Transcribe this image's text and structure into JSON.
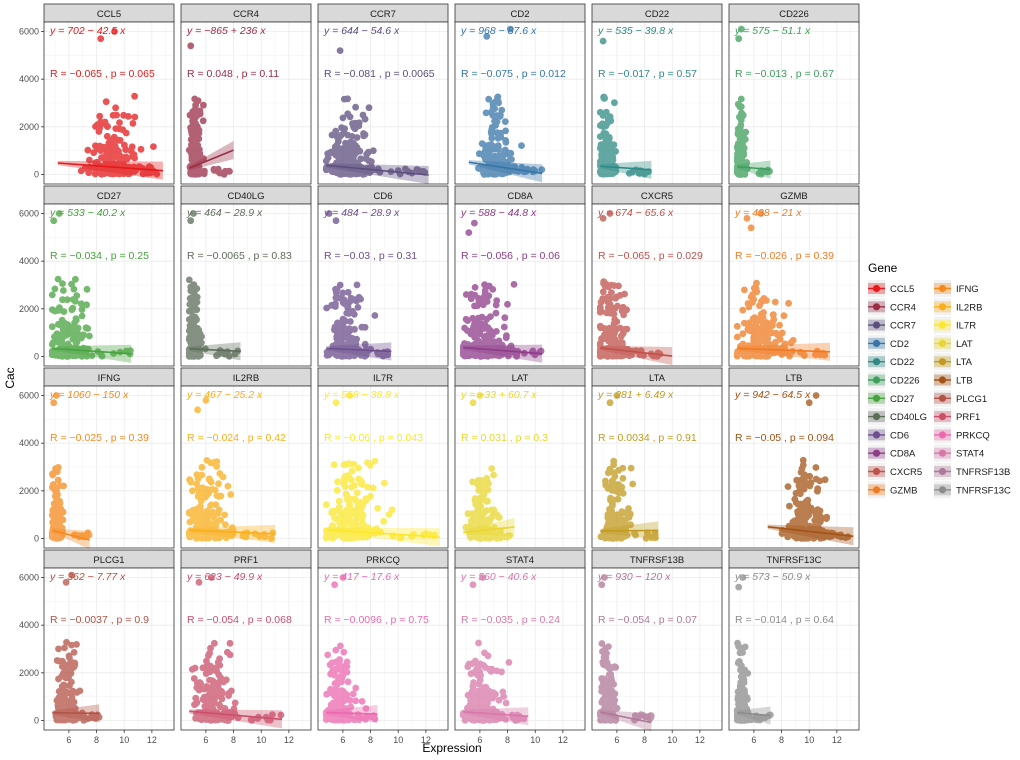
{
  "chart_data": {
    "type": "scatter",
    "xlabel": "Expression",
    "ylabel": "Cac",
    "xlim": [
      4.2,
      13.6
    ],
    "ylim": [
      -400,
      6400
    ],
    "x_ticks": [
      "6",
      "8",
      "10",
      "12"
    ],
    "y_ticks": [
      "0",
      "2000",
      "4000",
      "6000"
    ],
    "grid": true,
    "legend": {
      "title": "Gene",
      "placement": "right",
      "columns": 2
    },
    "panels": [
      {
        "gene": "CCL5",
        "color": "#E41A1C",
        "eq": "y = 702 − 42.5 x",
        "stat": "R = −0.065 , p = 0.065",
        "slope": -42.5,
        "intercept": 702,
        "x_range": [
          5.2,
          12.8
        ],
        "center": 8.5,
        "spread": 1.3,
        "outliers": [
          [
            8.3,
            5700
          ],
          [
            9.3,
            6000
          ]
        ]
      },
      {
        "gene": "CCR4",
        "color": "#9A2D46",
        "eq": "y = −865 + 236 x",
        "stat": "R = 0.048 , p = 0.11",
        "slope": 236,
        "intercept": -865,
        "x_range": [
          4.8,
          8.0
        ],
        "center": 5.1,
        "spread": 0.25,
        "outliers": [
          [
            4.9,
            5400
          ]
        ]
      },
      {
        "gene": "CCR7",
        "color": "#5D4E7E",
        "eq": "y = 644 − 54.6 x",
        "stat": "R = −0.081 , p = 0.0065",
        "slope": -54.6,
        "intercept": 644,
        "x_range": [
          4.8,
          12.2
        ],
        "center": 6.0,
        "spread": 1.0,
        "outliers": [
          [
            5.8,
            5200
          ]
        ]
      },
      {
        "gene": "CD2",
        "color": "#3775A8",
        "eq": "y = 968 − 87.6 x",
        "stat": "R = −0.075 , p = 0.012",
        "slope": -87.6,
        "intercept": 968,
        "x_range": [
          5.2,
          10.5
        ],
        "center": 6.8,
        "spread": 0.8,
        "outliers": [
          [
            6.5,
            5800
          ],
          [
            8.2,
            6100
          ]
        ]
      },
      {
        "gene": "CD22",
        "color": "#2F8A85",
        "eq": "y = 535 − 39.8 x",
        "stat": "R = −0.017 , p = 0.57",
        "slope": -39.8,
        "intercept": 535,
        "x_range": [
          4.8,
          8.5
        ],
        "center": 5.1,
        "spread": 0.35,
        "outliers": [
          [
            5.0,
            5600
          ]
        ]
      },
      {
        "gene": "CD226",
        "color": "#3E9E5C",
        "eq": "y = 575 − 51.1 x",
        "stat": "R = −0.013 , p = 0.67",
        "slope": -51.1,
        "intercept": 575,
        "x_range": [
          4.8,
          7.2
        ],
        "center": 4.95,
        "spread": 0.2,
        "outliers": [
          [
            4.9,
            5700
          ],
          [
            5.1,
            6100
          ]
        ]
      },
      {
        "gene": "CD27",
        "color": "#47A23F",
        "eq": "y = 533 − 40.2 x",
        "stat": "R = −0.034 , p = 0.25",
        "slope": -40.2,
        "intercept": 533,
        "x_range": [
          4.8,
          10.5
        ],
        "center": 5.5,
        "spread": 0.9,
        "outliers": [
          [
            4.9,
            5700
          ],
          [
            5.3,
            6000
          ]
        ]
      },
      {
        "gene": "CD40LG",
        "color": "#5D6D5A",
        "eq": "y = 464 − 28.9 x",
        "stat": "R = −0.0065 , p = 0.83",
        "slope": -28.9,
        "intercept": 464,
        "x_range": [
          4.8,
          8.5
        ],
        "center": 5.0,
        "spread": 0.3,
        "outliers": [
          [
            4.9,
            5700
          ],
          [
            5.1,
            6000
          ]
        ]
      },
      {
        "gene": "CD6",
        "color": "#6C4E8C",
        "eq": "y = 484 − 28.9 x",
        "stat": "R = −0.03 , p = 0.31",
        "slope": -28.9,
        "intercept": 484,
        "x_range": [
          4.8,
          9.5
        ],
        "center": 5.8,
        "spread": 0.9,
        "outliers": [
          [
            5.5,
            5700
          ],
          [
            5.0,
            6000
          ]
        ]
      },
      {
        "gene": "CD8A",
        "color": "#8E3C8A",
        "eq": "y = 588 − 44.8 x",
        "stat": "R = −0.056 , p = 0.06",
        "slope": -44.8,
        "intercept": 588,
        "x_range": [
          4.8,
          10.5
        ],
        "center": 5.6,
        "spread": 1.0,
        "outliers": [
          [
            5.2,
            5200
          ],
          [
            5.6,
            5600
          ]
        ]
      },
      {
        "gene": "CXCR5",
        "color": "#C0504A",
        "eq": "y = 674 − 65.6 x",
        "stat": "R = −0.065 , p = 0.029",
        "slope": -65.6,
        "intercept": 674,
        "x_range": [
          4.8,
          10.0
        ],
        "center": 5.3,
        "spread": 0.7,
        "outliers": [
          [
            5.0,
            5800
          ],
          [
            5.5,
            6000
          ]
        ]
      },
      {
        "gene": "GZMB",
        "color": "#F07A22",
        "eq": "y = 438 − 21 x",
        "stat": "R = −0.026 , p = 0.39",
        "slope": -21,
        "intercept": 438,
        "x_range": [
          4.8,
          11.5
        ],
        "center": 5.8,
        "spread": 1.1,
        "outliers": [
          [
            5.5,
            5800
          ],
          [
            6.5,
            6000
          ],
          [
            5.8,
            5400
          ]
        ]
      },
      {
        "gene": "IFNG",
        "color": "#F5891E",
        "eq": "y = 1060 − 150 x",
        "stat": "R = −0.025 , p = 0.39",
        "slope": -150,
        "intercept": 1060,
        "x_range": [
          4.8,
          7.5
        ],
        "center": 5.0,
        "spread": 0.25,
        "outliers": [
          [
            4.9,
            5700
          ],
          [
            5.1,
            6000
          ]
        ]
      },
      {
        "gene": "IL2RB",
        "color": "#F9AE1D",
        "eq": "y = 467 − 25.2 x",
        "stat": "R = −0.024 , p = 0.42",
        "slope": -25.2,
        "intercept": 467,
        "x_range": [
          4.8,
          11.0
        ],
        "center": 5.6,
        "spread": 0.9,
        "outliers": [
          [
            5.4,
            5400
          ],
          [
            6.0,
            5800
          ]
        ]
      },
      {
        "gene": "IL7R",
        "color": "#FCE72C",
        "eq": "y = 558 − 38.8 x",
        "stat": "R = −0.06 , p = 0.043",
        "slope": -38.8,
        "intercept": 558,
        "x_range": [
          4.8,
          13.0
        ],
        "center": 6.0,
        "spread": 1.2,
        "outliers": [
          [
            5.5,
            5700
          ],
          [
            6.5,
            6000
          ]
        ]
      },
      {
        "gene": "LAT",
        "color": "#E9D62F",
        "eq": "y = −33 + 60.7 x",
        "stat": "R = 0.031 , p = 0.3",
        "slope": 60.7,
        "intercept": -33,
        "x_range": [
          4.8,
          8.5
        ],
        "center": 5.8,
        "spread": 0.6,
        "outliers": [
          [
            5.5,
            5700
          ],
          [
            6.0,
            6000
          ]
        ]
      },
      {
        "gene": "LTA",
        "color": "#C29A1F",
        "eq": "y = 281 + 6.49 x",
        "stat": "R = 0.0034 , p = 0.91",
        "slope": 6.49,
        "intercept": 281,
        "x_range": [
          4.8,
          9.0
        ],
        "center": 5.6,
        "spread": 0.6,
        "outliers": [
          [
            5.5,
            5700
          ],
          [
            6.0,
            6000
          ]
        ]
      },
      {
        "gene": "LTB",
        "color": "#A35317",
        "eq": "y = 942 − 64.5 x",
        "stat": "R = −0.05 , p = 0.094",
        "slope": -64.5,
        "intercept": 942,
        "x_range": [
          7.0,
          13.2
        ],
        "center": 9.3,
        "spread": 0.9,
        "outliers": [
          [
            10.0,
            5700
          ],
          [
            10.5,
            6000
          ]
        ]
      },
      {
        "gene": "PLCG1",
        "color": "#B35246",
        "eq": "y = 362 − 7.77 x",
        "stat": "R = −0.0037 , p = 0.9",
        "slope": -7.77,
        "intercept": 362,
        "x_range": [
          4.8,
          8.2
        ],
        "center": 5.5,
        "spread": 0.5,
        "outliers": [
          [
            5.8,
            5800
          ],
          [
            6.2,
            6100
          ]
        ]
      },
      {
        "gene": "PRF1",
        "color": "#CA4F6A",
        "eq": "y = 623 − 49.9 x",
        "stat": "R = −0.054 , p = 0.068",
        "slope": -49.9,
        "intercept": 623,
        "x_range": [
          4.8,
          11.5
        ],
        "center": 6.0,
        "spread": 1.0,
        "outliers": [
          [
            5.5,
            5800
          ],
          [
            6.4,
            6000
          ]
        ]
      },
      {
        "gene": "PRKCQ",
        "color": "#EC69B0",
        "eq": "y = 417 − 17.6 x",
        "stat": "R = −0.0096 , p = 0.75",
        "slope": -17.6,
        "intercept": 417,
        "x_range": [
          4.8,
          8.5
        ],
        "center": 5.4,
        "spread": 0.6,
        "outliers": [
          [
            5.4,
            5700
          ],
          [
            6.0,
            6000
          ]
        ]
      },
      {
        "gene": "STAT4",
        "color": "#D778A8",
        "eq": "y = 560 − 40.6 x",
        "stat": "R = −0.035 , p = 0.24",
        "slope": -40.6,
        "intercept": 560,
        "x_range": [
          4.8,
          9.5
        ],
        "center": 5.8,
        "spread": 0.8,
        "outliers": [
          [
            5.5,
            5700
          ],
          [
            6.2,
            6000
          ]
        ]
      },
      {
        "gene": "TNFRSF13B",
        "color": "#B07897",
        "eq": "y = 930 − 120 x",
        "stat": "R = −0.054 , p = 0.07",
        "slope": -120,
        "intercept": 930,
        "x_range": [
          4.8,
          8.5
        ],
        "center": 5.1,
        "spread": 0.35,
        "outliers": [
          [
            4.9,
            5700
          ],
          [
            5.1,
            6000
          ]
        ]
      },
      {
        "gene": "TNFRSF13C",
        "color": "#8C8C8C",
        "eq": "y = 573 − 50.9 x",
        "stat": "R = −0.014 , p = 0.64",
        "slope": -50.9,
        "intercept": 573,
        "x_range": [
          4.8,
          7.2
        ],
        "center": 5.0,
        "spread": 0.25,
        "outliers": [
          [
            4.9,
            5600
          ],
          [
            5.2,
            6000
          ]
        ]
      }
    ]
  }
}
